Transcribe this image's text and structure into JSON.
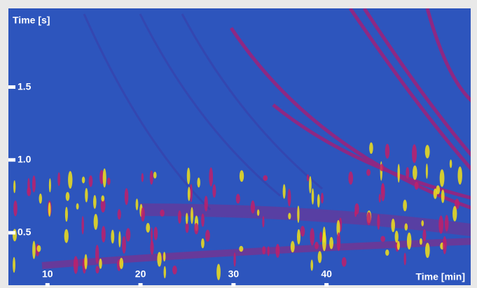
{
  "chart_data": {
    "type": "heatmap",
    "x_label": "Time [min]",
    "y_label": "Time [s]",
    "xlim": [
      5.8,
      55.5
    ],
    "xticks": [
      10,
      20,
      30,
      40
    ],
    "ylim": [
      0.14,
      2.04
    ],
    "yticks": [
      0.5,
      {
        "value": 1,
        "label": "1.0"
      },
      1.5
    ],
    "background": "#2d55bd",
    "tick_color": "#ffffff"
  }
}
